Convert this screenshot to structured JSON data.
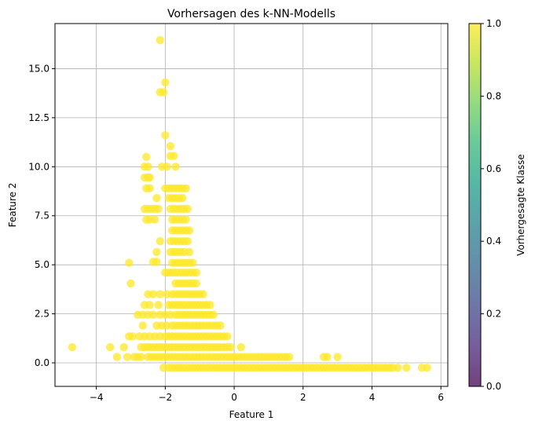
{
  "chart_data": {
    "type": "scatter",
    "title": "Vorhersagen des k-NN-Modells",
    "xlabel": "Feature 1",
    "ylabel": "Feature 2",
    "xlim": [
      -5.2,
      6.2
    ],
    "ylim": [
      -1.2,
      17.3
    ],
    "xticks": [
      -4,
      -2,
      0,
      2,
      4,
      6
    ],
    "yticks": [
      0.0,
      2.5,
      5.0,
      7.5,
      10.0,
      12.5,
      15.0
    ],
    "grid": true,
    "point_color": "#fde725",
    "point_alpha": 0.75,
    "colorbar": {
      "label": "Vorhergesagte Klasse",
      "range": [
        0.0,
        1.0
      ],
      "ticks": [
        0.0,
        0.2,
        0.4,
        0.6,
        0.8,
        1.0
      ],
      "colors": [
        "#440154",
        "#482878",
        "#3e4989",
        "#31688e",
        "#26828e",
        "#1f9e89",
        "#35b779",
        "#6ece58",
        "#b5de2b",
        "#fde725"
      ],
      "alpha": 0.75
    },
    "points": [
      [
        -2.15,
        16.45
      ],
      [
        -2.0,
        14.3
      ],
      [
        -2.15,
        13.8
      ],
      [
        -2.05,
        13.8
      ],
      [
        -2.0,
        11.6
      ],
      [
        -1.85,
        11.05
      ],
      [
        -1.85,
        10.55
      ],
      [
        -1.75,
        10.55
      ],
      [
        -1.7,
        10.0
      ],
      [
        -2.1,
        10.0
      ],
      [
        -1.95,
        10.0
      ],
      [
        -2.55,
        10.5
      ],
      [
        -2.6,
        10.0
      ],
      [
        -2.5,
        10.0
      ],
      [
        -2.6,
        9.45
      ],
      [
        -2.5,
        9.45
      ],
      [
        -2.45,
        9.45
      ],
      [
        -2.55,
        8.9
      ],
      [
        -2.45,
        8.9
      ],
      [
        -2.0,
        8.9
      ],
      [
        -1.9,
        8.9
      ],
      [
        -1.8,
        8.9
      ],
      [
        -1.7,
        8.9
      ],
      [
        -1.6,
        8.9
      ],
      [
        -1.5,
        8.9
      ],
      [
        -1.4,
        8.9
      ],
      [
        -1.9,
        8.4
      ],
      [
        -1.8,
        8.4
      ],
      [
        -1.7,
        8.4
      ],
      [
        -1.6,
        8.4
      ],
      [
        -1.5,
        8.4
      ],
      [
        -2.25,
        8.4
      ],
      [
        -2.6,
        7.85
      ],
      [
        -2.5,
        7.85
      ],
      [
        -2.4,
        7.85
      ],
      [
        -2.3,
        7.85
      ],
      [
        -2.2,
        7.85
      ],
      [
        -1.85,
        7.85
      ],
      [
        -1.75,
        7.85
      ],
      [
        -1.65,
        7.85
      ],
      [
        -1.55,
        7.85
      ],
      [
        -1.45,
        7.85
      ],
      [
        -1.35,
        7.85
      ],
      [
        -2.55,
        7.3
      ],
      [
        -2.45,
        7.3
      ],
      [
        -2.3,
        7.3
      ],
      [
        -1.8,
        7.3
      ],
      [
        -1.7,
        7.3
      ],
      [
        -1.6,
        7.3
      ],
      [
        -1.5,
        7.3
      ],
      [
        -1.4,
        7.3
      ],
      [
        -1.8,
        6.75
      ],
      [
        -1.7,
        6.75
      ],
      [
        -1.6,
        6.75
      ],
      [
        -1.5,
        6.75
      ],
      [
        -1.4,
        6.75
      ],
      [
        -1.3,
        6.75
      ],
      [
        -2.15,
        6.2
      ],
      [
        -1.85,
        6.2
      ],
      [
        -1.75,
        6.2
      ],
      [
        -1.65,
        6.2
      ],
      [
        -1.55,
        6.2
      ],
      [
        -1.45,
        6.2
      ],
      [
        -1.35,
        6.2
      ],
      [
        -2.25,
        5.65
      ],
      [
        -1.85,
        5.65
      ],
      [
        -1.75,
        5.65
      ],
      [
        -1.65,
        5.65
      ],
      [
        -1.55,
        5.65
      ],
      [
        -1.45,
        5.65
      ],
      [
        -1.3,
        5.65
      ],
      [
        -3.05,
        5.1
      ],
      [
        -2.35,
        5.15
      ],
      [
        -2.25,
        5.15
      ],
      [
        -1.8,
        5.1
      ],
      [
        -1.7,
        5.1
      ],
      [
        -1.6,
        5.1
      ],
      [
        -1.5,
        5.1
      ],
      [
        -1.4,
        5.1
      ],
      [
        -1.3,
        5.1
      ],
      [
        -1.2,
        5.1
      ],
      [
        -2.0,
        4.6
      ],
      [
        -1.9,
        4.6
      ],
      [
        -1.8,
        4.6
      ],
      [
        -1.7,
        4.6
      ],
      [
        -1.6,
        4.6
      ],
      [
        -1.5,
        4.6
      ],
      [
        -1.4,
        4.6
      ],
      [
        -1.3,
        4.6
      ],
      [
        -1.2,
        4.6
      ],
      [
        -1.1,
        4.6
      ],
      [
        -3.0,
        4.05
      ],
      [
        -1.7,
        4.05
      ],
      [
        -1.6,
        4.05
      ],
      [
        -1.5,
        4.05
      ],
      [
        -1.4,
        4.05
      ],
      [
        -1.3,
        4.05
      ],
      [
        -1.2,
        4.05
      ],
      [
        -1.1,
        4.05
      ],
      [
        -2.5,
        3.5
      ],
      [
        -2.35,
        3.5
      ],
      [
        -2.15,
        3.5
      ],
      [
        -1.95,
        3.5
      ],
      [
        -1.8,
        3.5
      ],
      [
        -1.7,
        3.5
      ],
      [
        -1.6,
        3.5
      ],
      [
        -1.5,
        3.5
      ],
      [
        -1.4,
        3.5
      ],
      [
        -1.3,
        3.5
      ],
      [
        -1.2,
        3.5
      ],
      [
        -1.1,
        3.5
      ],
      [
        -1.0,
        3.5
      ],
      [
        -0.9,
        3.5
      ],
      [
        -2.6,
        2.95
      ],
      [
        -2.45,
        2.95
      ],
      [
        -2.2,
        2.95
      ],
      [
        -1.9,
        2.95
      ],
      [
        -1.8,
        2.95
      ],
      [
        -1.7,
        2.95
      ],
      [
        -1.6,
        2.95
      ],
      [
        -1.5,
        2.95
      ],
      [
        -1.4,
        2.95
      ],
      [
        -1.3,
        2.95
      ],
      [
        -1.2,
        2.95
      ],
      [
        -1.1,
        2.95
      ],
      [
        -1.0,
        2.95
      ],
      [
        -0.9,
        2.95
      ],
      [
        -0.8,
        2.95
      ],
      [
        -0.7,
        2.95
      ],
      [
        -2.8,
        2.45
      ],
      [
        -2.65,
        2.45
      ],
      [
        -2.5,
        2.45
      ],
      [
        -2.35,
        2.45
      ],
      [
        -2.15,
        2.45
      ],
      [
        -2.0,
        2.45
      ],
      [
        -1.85,
        2.45
      ],
      [
        -1.7,
        2.45
      ],
      [
        -1.6,
        2.45
      ],
      [
        -1.5,
        2.45
      ],
      [
        -1.4,
        2.45
      ],
      [
        -1.3,
        2.45
      ],
      [
        -1.2,
        2.45
      ],
      [
        -1.1,
        2.45
      ],
      [
        -1.0,
        2.45
      ],
      [
        -0.9,
        2.45
      ],
      [
        -0.8,
        2.45
      ],
      [
        -0.7,
        2.45
      ],
      [
        -0.6,
        2.45
      ],
      [
        -2.65,
        1.9
      ],
      [
        -2.25,
        1.9
      ],
      [
        -2.1,
        1.9
      ],
      [
        -1.95,
        1.9
      ],
      [
        -1.8,
        1.9
      ],
      [
        -1.7,
        1.9
      ],
      [
        -1.6,
        1.9
      ],
      [
        -1.5,
        1.9
      ],
      [
        -1.4,
        1.9
      ],
      [
        -1.3,
        1.9
      ],
      [
        -1.2,
        1.9
      ],
      [
        -1.1,
        1.9
      ],
      [
        -1.0,
        1.9
      ],
      [
        -0.9,
        1.9
      ],
      [
        -0.8,
        1.9
      ],
      [
        -0.7,
        1.9
      ],
      [
        -0.6,
        1.9
      ],
      [
        -0.5,
        1.9
      ],
      [
        -0.4,
        1.9
      ],
      [
        -3.05,
        1.35
      ],
      [
        -2.95,
        1.35
      ],
      [
        -2.75,
        1.35
      ],
      [
        -2.6,
        1.35
      ],
      [
        -2.45,
        1.35
      ],
      [
        -2.3,
        1.35
      ],
      [
        -2.15,
        1.35
      ],
      [
        -2.0,
        1.35
      ],
      [
        -1.9,
        1.35
      ],
      [
        -1.8,
        1.35
      ],
      [
        -1.7,
        1.35
      ],
      [
        -1.6,
        1.35
      ],
      [
        -1.5,
        1.35
      ],
      [
        -1.4,
        1.35
      ],
      [
        -1.3,
        1.35
      ],
      [
        -1.2,
        1.35
      ],
      [
        -1.1,
        1.35
      ],
      [
        -1.0,
        1.35
      ],
      [
        -0.9,
        1.35
      ],
      [
        -0.8,
        1.35
      ],
      [
        -0.7,
        1.35
      ],
      [
        -0.6,
        1.35
      ],
      [
        -0.5,
        1.35
      ],
      [
        -0.4,
        1.35
      ],
      [
        -0.3,
        1.35
      ],
      [
        -0.2,
        1.35
      ],
      [
        -4.7,
        0.8
      ],
      [
        -3.6,
        0.8
      ],
      [
        -3.2,
        0.8
      ],
      [
        -2.7,
        0.8
      ],
      [
        -2.6,
        0.8
      ],
      [
        -2.5,
        0.8
      ],
      [
        -2.4,
        0.8
      ],
      [
        -2.3,
        0.8
      ],
      [
        -2.2,
        0.8
      ],
      [
        -2.1,
        0.8
      ],
      [
        -2.0,
        0.8
      ],
      [
        -1.9,
        0.8
      ],
      [
        -1.8,
        0.8
      ],
      [
        -1.7,
        0.8
      ],
      [
        -1.6,
        0.8
      ],
      [
        -1.5,
        0.8
      ],
      [
        -1.4,
        0.8
      ],
      [
        -1.3,
        0.8
      ],
      [
        -1.2,
        0.8
      ],
      [
        -1.1,
        0.8
      ],
      [
        -1.0,
        0.8
      ],
      [
        -0.9,
        0.8
      ],
      [
        -0.8,
        0.8
      ],
      [
        -0.7,
        0.8
      ],
      [
        -0.6,
        0.8
      ],
      [
        -0.5,
        0.8
      ],
      [
        -0.4,
        0.8
      ],
      [
        -0.3,
        0.8
      ],
      [
        -0.2,
        0.8
      ],
      [
        -0.1,
        0.8
      ],
      [
        0.2,
        0.8
      ],
      [
        -3.4,
        0.3
      ],
      [
        -3.1,
        0.3
      ],
      [
        -2.9,
        0.3
      ],
      [
        -2.8,
        0.3
      ],
      [
        -2.7,
        0.3
      ],
      [
        -2.5,
        0.3
      ],
      [
        -2.4,
        0.3
      ],
      [
        -2.3,
        0.3
      ],
      [
        -2.2,
        0.3
      ],
      [
        -2.1,
        0.3
      ],
      [
        -2.0,
        0.3
      ],
      [
        -1.9,
        0.3
      ],
      [
        -1.8,
        0.3
      ],
      [
        -1.7,
        0.3
      ],
      [
        -1.6,
        0.3
      ],
      [
        -1.5,
        0.3
      ],
      [
        -1.4,
        0.3
      ],
      [
        -1.3,
        0.3
      ],
      [
        -1.2,
        0.3
      ],
      [
        -1.1,
        0.3
      ],
      [
        -1.0,
        0.3
      ],
      [
        -0.9,
        0.3
      ],
      [
        -0.8,
        0.3
      ],
      [
        -0.7,
        0.3
      ],
      [
        -0.6,
        0.3
      ],
      [
        -0.5,
        0.3
      ],
      [
        -0.4,
        0.3
      ],
      [
        -0.3,
        0.3
      ],
      [
        -0.2,
        0.3
      ],
      [
        -0.1,
        0.3
      ],
      [
        0.0,
        0.3
      ],
      [
        0.1,
        0.3
      ],
      [
        0.2,
        0.3
      ],
      [
        0.3,
        0.3
      ],
      [
        0.4,
        0.3
      ],
      [
        0.5,
        0.3
      ],
      [
        0.6,
        0.3
      ],
      [
        0.7,
        0.3
      ],
      [
        0.8,
        0.3
      ],
      [
        0.9,
        0.3
      ],
      [
        1.0,
        0.3
      ],
      [
        1.1,
        0.3
      ],
      [
        1.2,
        0.3
      ],
      [
        1.3,
        0.3
      ],
      [
        1.4,
        0.3
      ],
      [
        1.5,
        0.3
      ],
      [
        1.6,
        0.3
      ],
      [
        2.6,
        0.3
      ],
      [
        2.7,
        0.3
      ],
      [
        3.0,
        0.3
      ],
      [
        -2.05,
        -0.25
      ],
      [
        -1.9,
        -0.25
      ],
      [
        -1.8,
        -0.25
      ],
      [
        -1.7,
        -0.25
      ],
      [
        -1.6,
        -0.25
      ],
      [
        -1.5,
        -0.25
      ],
      [
        -1.4,
        -0.25
      ],
      [
        -1.3,
        -0.25
      ],
      [
        -1.2,
        -0.25
      ],
      [
        -1.1,
        -0.25
      ],
      [
        -1.0,
        -0.25
      ],
      [
        -0.9,
        -0.25
      ],
      [
        -0.8,
        -0.25
      ],
      [
        -0.7,
        -0.25
      ],
      [
        -0.6,
        -0.25
      ],
      [
        -0.5,
        -0.25
      ],
      [
        -0.4,
        -0.25
      ],
      [
        -0.3,
        -0.25
      ],
      [
        -0.2,
        -0.25
      ],
      [
        -0.1,
        -0.25
      ],
      [
        0.0,
        -0.25
      ],
      [
        0.1,
        -0.25
      ],
      [
        0.2,
        -0.25
      ],
      [
        0.3,
        -0.25
      ],
      [
        0.4,
        -0.25
      ],
      [
        0.5,
        -0.25
      ],
      [
        0.6,
        -0.25
      ],
      [
        0.7,
        -0.25
      ],
      [
        0.8,
        -0.25
      ],
      [
        0.9,
        -0.25
      ],
      [
        1.0,
        -0.25
      ],
      [
        1.1,
        -0.25
      ],
      [
        1.2,
        -0.25
      ],
      [
        1.3,
        -0.25
      ],
      [
        1.4,
        -0.25
      ],
      [
        1.5,
        -0.25
      ],
      [
        1.6,
        -0.25
      ],
      [
        1.7,
        -0.25
      ],
      [
        1.8,
        -0.25
      ],
      [
        1.9,
        -0.25
      ],
      [
        2.0,
        -0.25
      ],
      [
        2.1,
        -0.25
      ],
      [
        2.2,
        -0.25
      ],
      [
        2.3,
        -0.25
      ],
      [
        2.4,
        -0.25
      ],
      [
        2.5,
        -0.25
      ],
      [
        2.6,
        -0.25
      ],
      [
        2.7,
        -0.25
      ],
      [
        2.8,
        -0.25
      ],
      [
        2.9,
        -0.25
      ],
      [
        3.0,
        -0.25
      ],
      [
        3.1,
        -0.25
      ],
      [
        3.2,
        -0.25
      ],
      [
        3.3,
        -0.25
      ],
      [
        3.4,
        -0.25
      ],
      [
        3.5,
        -0.25
      ],
      [
        3.6,
        -0.25
      ],
      [
        3.7,
        -0.25
      ],
      [
        3.8,
        -0.25
      ],
      [
        3.9,
        -0.25
      ],
      [
        4.0,
        -0.25
      ],
      [
        4.1,
        -0.25
      ],
      [
        4.2,
        -0.25
      ],
      [
        4.3,
        -0.25
      ],
      [
        4.4,
        -0.25
      ],
      [
        4.5,
        -0.25
      ],
      [
        4.6,
        -0.25
      ],
      [
        4.75,
        -0.25
      ],
      [
        5.0,
        -0.25
      ],
      [
        5.45,
        -0.25
      ],
      [
        5.6,
        -0.25
      ]
    ]
  }
}
